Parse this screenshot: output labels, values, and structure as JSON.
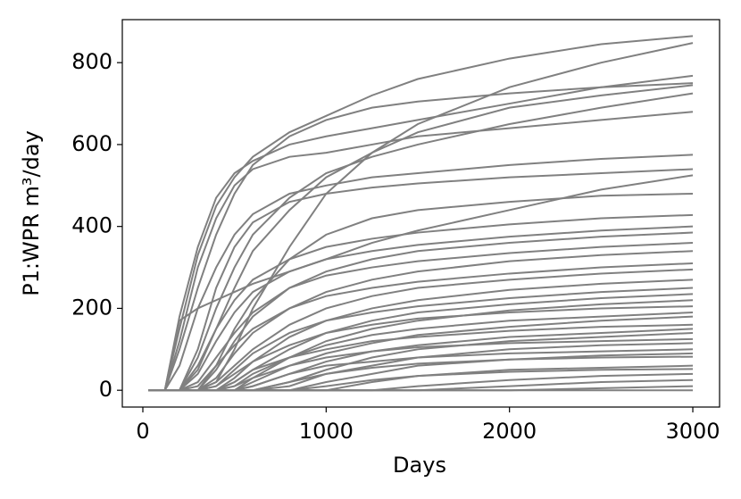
{
  "chart_data": {
    "type": "line",
    "xlabel": "Days",
    "ylabel": "P1:WPR m³/day",
    "color": "#808080",
    "grid": false,
    "xlim": [
      -112,
      3146
    ],
    "ylim": [
      -41,
      905
    ],
    "xticks": [
      0,
      1000,
      2000,
      3000
    ],
    "yticks": [
      0,
      200,
      400,
      600,
      800
    ],
    "x": [
      30,
      120,
      200,
      300,
      400,
      500,
      600,
      800,
      1000,
      1250,
      1500,
      2000,
      2500,
      3000
    ],
    "series": [
      {
        "values": [
          0,
          0,
          150,
          330,
          450,
          520,
          570,
          630,
          670,
          720,
          760,
          810,
          845,
          865
        ]
      },
      {
        "values": [
          0,
          0,
          0,
          0,
          20,
          100,
          200,
          350,
          480,
          580,
          650,
          740,
          800,
          848
        ]
      },
      {
        "values": [
          0,
          0,
          180,
          350,
          470,
          530,
          560,
          600,
          620,
          640,
          660,
          700,
          740,
          768
        ]
      },
      {
        "values": [
          0,
          0,
          100,
          250,
          380,
          480,
          550,
          620,
          660,
          690,
          705,
          725,
          740,
          750
        ]
      },
      {
        "values": [
          0,
          0,
          120,
          300,
          420,
          500,
          540,
          570,
          580,
          600,
          620,
          640,
          660,
          680
        ]
      },
      {
        "values": [
          0,
          0,
          0,
          50,
          150,
          250,
          340,
          440,
          520,
          580,
          630,
          690,
          720,
          745
        ]
      },
      {
        "values": [
          0,
          0,
          0,
          80,
          200,
          300,
          380,
          470,
          530,
          570,
          600,
          650,
          690,
          725
        ]
      },
      {
        "values": [
          0,
          0,
          60,
          200,
          300,
          380,
          430,
          480,
          500,
          520,
          530,
          550,
          565,
          575
        ]
      },
      {
        "values": [
          0,
          0,
          0,
          100,
          250,
          350,
          410,
          460,
          480,
          495,
          505,
          520,
          530,
          540
        ]
      },
      {
        "values": [
          0,
          0,
          0,
          0,
          60,
          150,
          220,
          320,
          380,
          420,
          440,
          460,
          475,
          480
        ]
      },
      {
        "values": [
          0,
          0,
          170,
          200,
          220,
          240,
          260,
          290,
          320,
          360,
          390,
          440,
          490,
          525
        ]
      },
      {
        "values": [
          0,
          0,
          0,
          60,
          150,
          220,
          270,
          320,
          350,
          370,
          385,
          405,
          420,
          428
        ]
      },
      {
        "values": [
          0,
          0,
          0,
          40,
          120,
          190,
          240,
          290,
          320,
          340,
          355,
          375,
          390,
          400
        ]
      },
      {
        "values": [
          0,
          0,
          0,
          0,
          50,
          120,
          180,
          250,
          290,
          320,
          340,
          360,
          375,
          385
        ]
      },
      {
        "values": [
          0,
          0,
          0,
          20,
          80,
          140,
          190,
          250,
          280,
          300,
          315,
          335,
          350,
          360
        ]
      },
      {
        "values": [
          0,
          0,
          0,
          0,
          30,
          90,
          140,
          200,
          240,
          270,
          290,
          315,
          330,
          340
        ]
      },
      {
        "values": [
          0,
          0,
          0,
          10,
          60,
          110,
          150,
          200,
          230,
          250,
          265,
          285,
          300,
          310
        ]
      },
      {
        "values": [
          0,
          0,
          0,
          0,
          20,
          60,
          100,
          160,
          200,
          230,
          250,
          270,
          285,
          295
        ]
      },
      {
        "values": [
          0,
          0,
          0,
          0,
          0,
          30,
          70,
          130,
          170,
          200,
          220,
          245,
          260,
          270
        ]
      },
      {
        "values": [
          0,
          0,
          0,
          0,
          10,
          50,
          90,
          140,
          170,
          190,
          205,
          225,
          240,
          250
        ]
      },
      {
        "values": [
          0,
          0,
          0,
          0,
          0,
          20,
          50,
          100,
          140,
          170,
          190,
          210,
          225,
          235
        ]
      },
      {
        "values": [
          0,
          0,
          0,
          0,
          0,
          0,
          30,
          80,
          120,
          150,
          170,
          195,
          210,
          220
        ]
      },
      {
        "values": [
          0,
          0,
          0,
          0,
          10,
          40,
          70,
          110,
          140,
          160,
          175,
          190,
          200,
          205
        ]
      },
      {
        "values": [
          0,
          0,
          0,
          0,
          0,
          10,
          40,
          80,
          110,
          135,
          150,
          170,
          180,
          190
        ]
      },
      {
        "values": [
          0,
          0,
          0,
          0,
          0,
          0,
          20,
          60,
          90,
          115,
          135,
          155,
          170,
          180
        ]
      },
      {
        "values": [
          0,
          0,
          0,
          0,
          0,
          20,
          50,
          80,
          100,
          120,
          130,
          145,
          155,
          160
        ]
      },
      {
        "values": [
          0,
          0,
          0,
          0,
          0,
          0,
          10,
          40,
          70,
          95,
          110,
          130,
          140,
          150
        ]
      },
      {
        "values": [
          0,
          0,
          0,
          0,
          0,
          0,
          0,
          20,
          50,
          80,
          100,
          120,
          130,
          140
        ]
      },
      {
        "values": [
          0,
          0,
          0,
          0,
          0,
          10,
          30,
          60,
          80,
          95,
          105,
          115,
          120,
          125
        ]
      },
      {
        "values": [
          0,
          0,
          0,
          0,
          0,
          0,
          0,
          10,
          40,
          60,
          80,
          100,
          110,
          115
        ]
      },
      {
        "values": [
          0,
          0,
          0,
          0,
          0,
          0,
          10,
          40,
          60,
          70,
          80,
          90,
          95,
          100
        ]
      },
      {
        "values": [
          0,
          0,
          0,
          0,
          0,
          0,
          0,
          0,
          20,
          40,
          60,
          75,
          85,
          90
        ]
      },
      {
        "values": [
          0,
          0,
          0,
          0,
          0,
          0,
          0,
          20,
          40,
          55,
          65,
          75,
          80,
          82
        ]
      },
      {
        "values": [
          0,
          0,
          0,
          0,
          0,
          0,
          0,
          0,
          0,
          20,
          35,
          50,
          55,
          60
        ]
      },
      {
        "values": [
          0,
          0,
          0,
          0,
          0,
          0,
          0,
          0,
          10,
          25,
          35,
          45,
          50,
          52
        ]
      },
      {
        "values": [
          0,
          0,
          0,
          0,
          0,
          0,
          0,
          0,
          0,
          0,
          10,
          25,
          35,
          40
        ]
      },
      {
        "values": [
          0,
          0,
          0,
          0,
          0,
          0,
          0,
          0,
          0,
          0,
          0,
          10,
          20,
          25
        ]
      },
      {
        "values": [
          0,
          0,
          0,
          0,
          0,
          0,
          0,
          0,
          0,
          0,
          0,
          0,
          5,
          10
        ]
      },
      {
        "values": [
          0,
          0,
          0,
          0,
          0,
          0,
          0,
          0,
          0,
          0,
          0,
          0,
          0,
          0
        ]
      }
    ]
  }
}
